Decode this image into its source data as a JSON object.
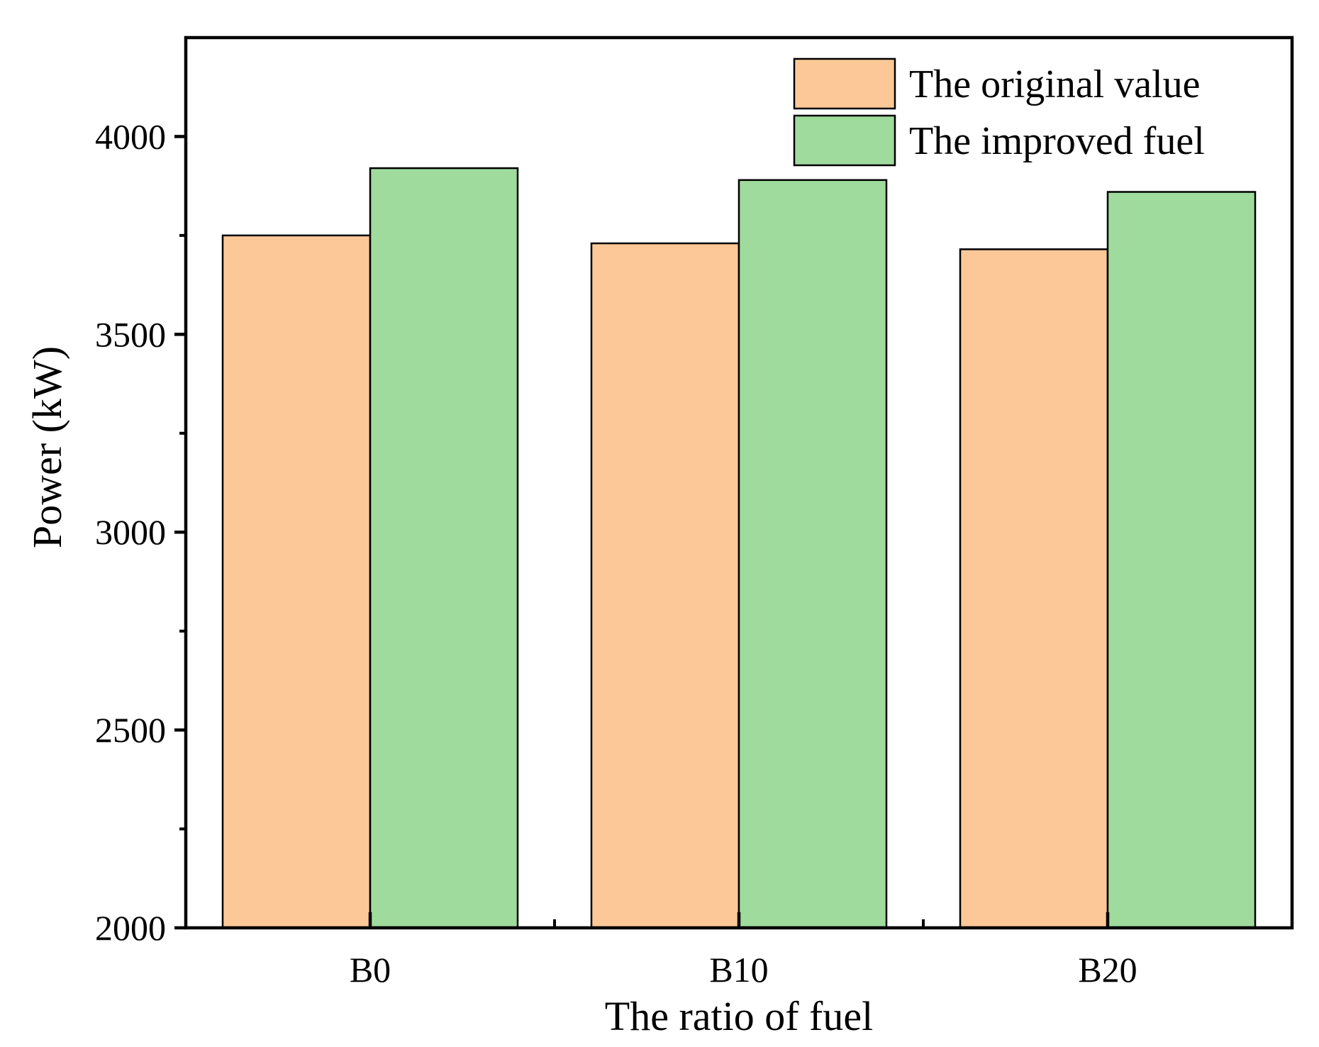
{
  "chart_data": {
    "type": "bar",
    "title": "",
    "xlabel": "The ratio of fuel",
    "ylabel": "Power (kW)",
    "categories": [
      "B0",
      "B10",
      "B20"
    ],
    "series": [
      {
        "name": "The original value",
        "color": "#fcc897",
        "values": [
          3750,
          3730,
          3715
        ]
      },
      {
        "name": "The improved fuel",
        "color": "#9fdb9c",
        "values": [
          3920,
          3890,
          3860
        ]
      }
    ],
    "ylim": [
      2000,
      4250
    ],
    "yticks": [
      2000,
      2500,
      3000,
      3500,
      4000
    ],
    "yticks_labels": [
      "2000",
      "2500",
      "3000",
      "3500",
      "4000"
    ],
    "grid": false,
    "legend_position": "top-right"
  }
}
